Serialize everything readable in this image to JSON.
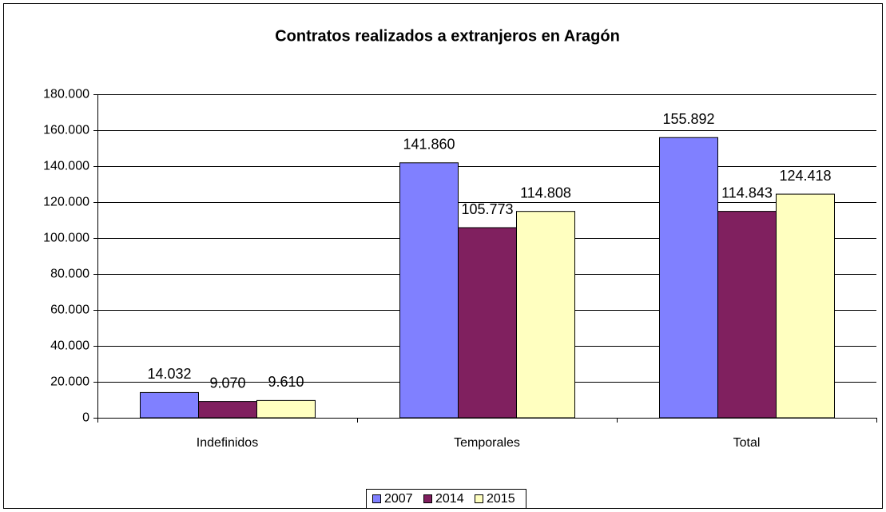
{
  "chart_data": {
    "type": "bar",
    "title": "Contratos realizados a extranjeros en Aragón",
    "categories": [
      "Indefinidos",
      "Temporales",
      "Total"
    ],
    "series": [
      {
        "name": "2007",
        "color": "#8080ff",
        "values": [
          14032,
          141860,
          155892
        ],
        "value_labels": [
          "14.032",
          "141.860",
          "155.892"
        ]
      },
      {
        "name": "2014",
        "color": "#80205f",
        "values": [
          9070,
          105773,
          114843
        ],
        "value_labels": [
          "9.070",
          "105.773",
          "114.843"
        ]
      },
      {
        "name": "2015",
        "color": "#ffffc0",
        "values": [
          9610,
          114808,
          124418
        ],
        "value_labels": [
          "9.610",
          "114.808",
          "124.418"
        ]
      }
    ],
    "ylim": [
      0,
      180000
    ],
    "yticks": [
      {
        "value": 0,
        "label": "0"
      },
      {
        "value": 20000,
        "label": "20.000"
      },
      {
        "value": 40000,
        "label": "40.000"
      },
      {
        "value": 60000,
        "label": "60.000"
      },
      {
        "value": 80000,
        "label": "80.000"
      },
      {
        "value": 100000,
        "label": "100.000"
      },
      {
        "value": 120000,
        "label": "120.000"
      },
      {
        "value": 140000,
        "label": "140.000"
      },
      {
        "value": 160000,
        "label": "160.000"
      },
      {
        "value": 180000,
        "label": "180.000"
      }
    ],
    "grid": true,
    "legend": "bottom"
  }
}
